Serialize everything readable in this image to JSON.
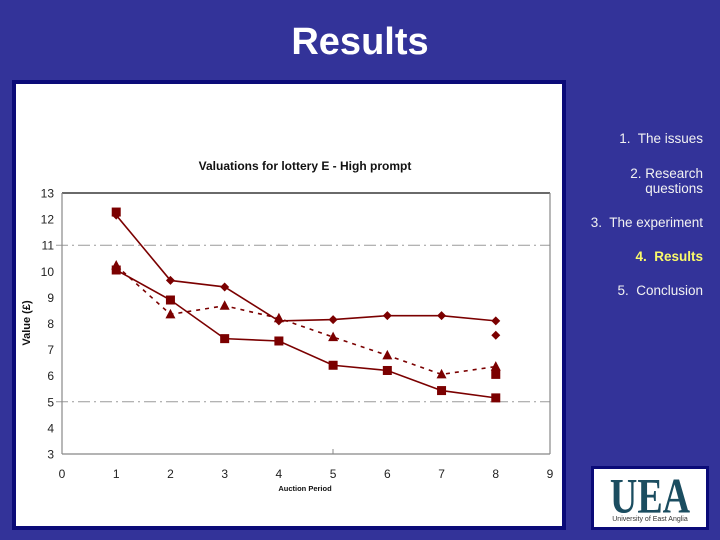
{
  "slide": {
    "title": "Results"
  },
  "nav": {
    "items": [
      {
        "label": "1.  The issues"
      },
      {
        "label": "2. Research\nquestions"
      },
      {
        "label": "3.  The experiment"
      },
      {
        "label": "4.  Results",
        "active": true
      },
      {
        "label": "5.  Conclusion"
      }
    ],
    "active_color": "#fafa6a",
    "text_color": "#f2f2f2"
  },
  "logo": {
    "mark": "UEA",
    "text": "University of East Anglia"
  },
  "colors": {
    "background": "#333399",
    "panel_border": "#0b0b78",
    "series": "#7b0000"
  },
  "chart_data": {
    "type": "line",
    "title": "Valuations for lottery E - High prompt",
    "xlabel": "Auction Period",
    "ylabel": "Value (£)",
    "xlim": [
      0,
      9
    ],
    "ylim": [
      3,
      13
    ],
    "x_ticks": [
      0,
      1,
      2,
      3,
      4,
      5,
      6,
      7,
      8,
      9
    ],
    "y_ticks": [
      3,
      4,
      5,
      6,
      7,
      8,
      9,
      10,
      11,
      12,
      13
    ],
    "gridlines_y": [
      5,
      11
    ],
    "legend": null,
    "x": [
      1,
      2,
      3,
      4,
      5,
      6,
      7,
      8
    ],
    "series": [
      {
        "marker": "diamond",
        "line": "solid",
        "color": "#7b0000",
        "values": [
          12.15,
          9.65,
          9.4,
          8.1,
          8.15,
          8.3,
          8.3,
          8.1
        ]
      },
      {
        "marker": "square",
        "line": "solid",
        "color": "#7b0000",
        "values": [
          10.05,
          8.9,
          7.42,
          7.33,
          6.4,
          6.2,
          5.43,
          5.15
        ]
      },
      {
        "marker": "triangle",
        "line": "dashed",
        "color": "#7b0000",
        "values": [
          10.22,
          8.35,
          8.68,
          8.2,
          7.48,
          6.78,
          6.05,
          6.35
        ]
      }
    ],
    "extra_points": [
      {
        "marker": "square",
        "x": 1,
        "y": 12.27,
        "color": "#7b0000"
      },
      {
        "marker": "diamond",
        "x": 8,
        "y": 7.55,
        "color": "#7b0000"
      },
      {
        "marker": "square",
        "x": 8,
        "y": 6.05,
        "color": "#7b0000"
      }
    ]
  }
}
